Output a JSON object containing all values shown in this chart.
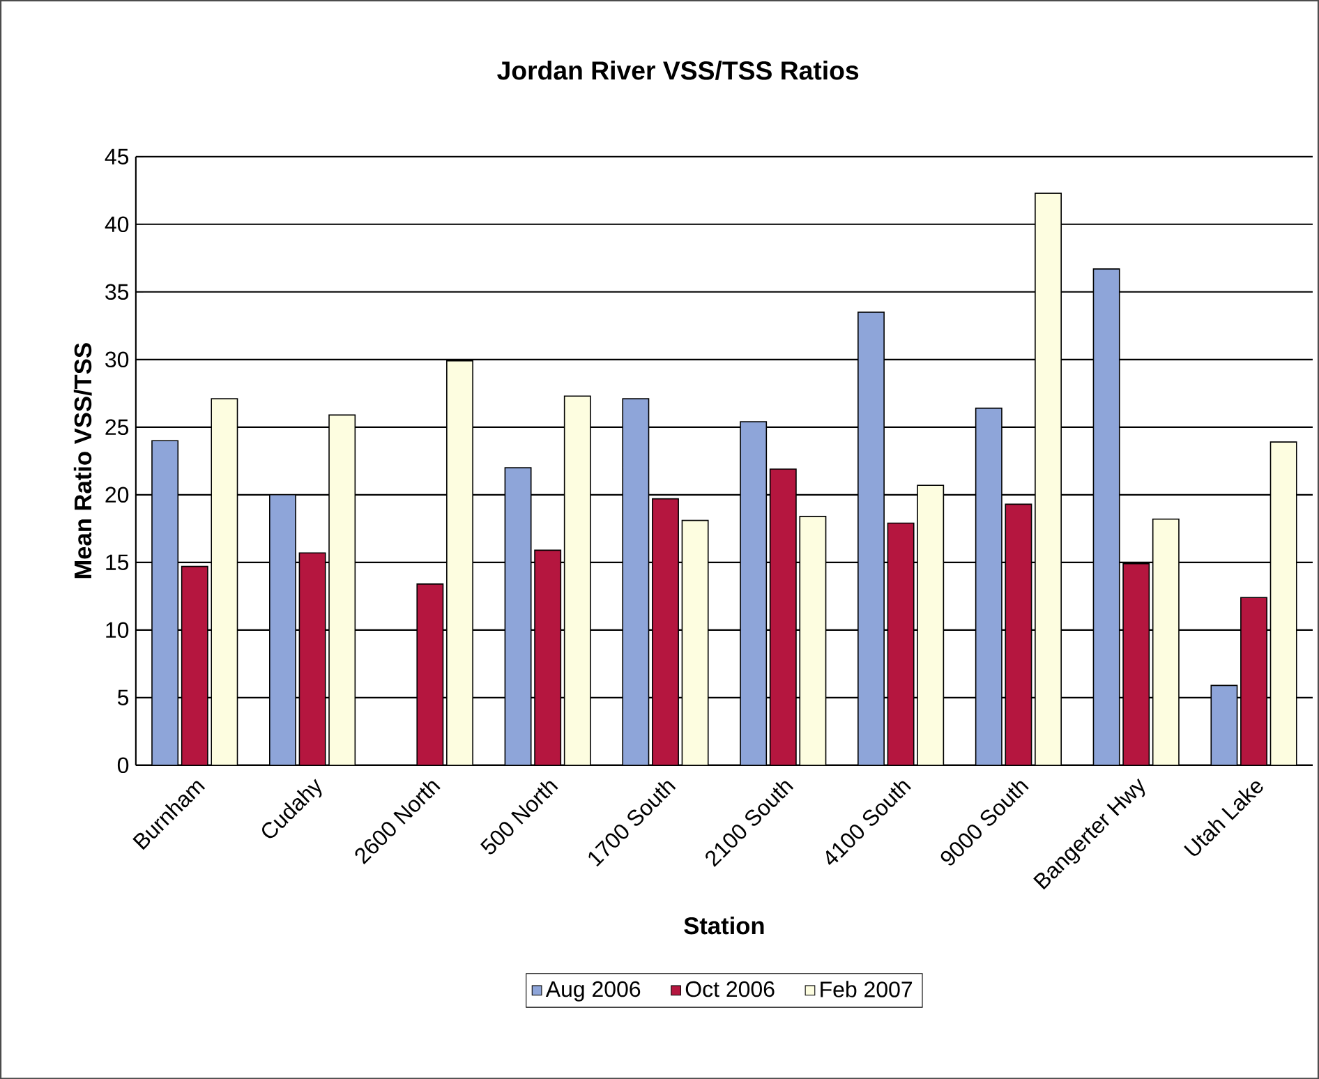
{
  "chart_data": {
    "type": "bar",
    "title": "Jordan River VSS/TSS Ratios",
    "xlabel": "Station",
    "ylabel": "Mean Ratio VSS/TSS",
    "categories": [
      "Burnham",
      "Cudahy",
      "2600 North",
      "500 North",
      "1700 South",
      "2100 South",
      "4100 South",
      "9000 South",
      "Bangerter Hwy",
      "Utah Lake"
    ],
    "series": [
      {
        "name": "Aug 2006",
        "color": "#8ea5d9",
        "values": [
          24,
          20,
          null,
          22,
          27.1,
          25.4,
          33.5,
          26.4,
          36.7,
          5.9
        ]
      },
      {
        "name": "Oct 2006",
        "color": "#b5163f",
        "values": [
          14.7,
          15.7,
          13.4,
          15.9,
          19.7,
          21.9,
          17.9,
          19.3,
          14.9,
          12.4
        ]
      },
      {
        "name": "Feb 2007",
        "color": "#fdfde0",
        "values": [
          27.1,
          25.9,
          29.9,
          27.3,
          18.1,
          18.4,
          20.7,
          42.3,
          18.2,
          23.9
        ]
      }
    ],
    "ylim": [
      0,
      45
    ],
    "yticks": [
      0,
      5,
      10,
      15,
      20,
      25,
      30,
      35,
      40,
      45
    ],
    "grid": "y",
    "legend": "bottom"
  }
}
